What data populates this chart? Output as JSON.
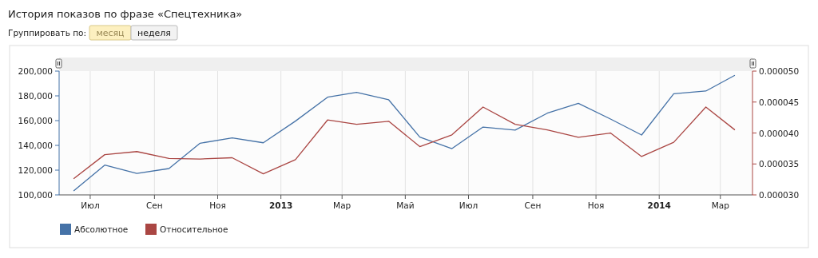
{
  "chart_data": {
    "type": "line",
    "title": "История показов по фразе «Спецтехника»",
    "annotations": [
      "Группировать по:",
      "месяц",
      "неделя"
    ],
    "x": [
      "2012-06-15",
      "2012-07-15",
      "2012-08-15",
      "2012-09-15",
      "2012-10-15",
      "2012-11-15",
      "2012-12-15",
      "2013-01-15",
      "2013-02-15",
      "2013-03-15",
      "2013-04-15",
      "2013-05-15",
      "2013-06-15",
      "2013-07-15",
      "2013-08-15",
      "2013-09-15",
      "2013-10-15",
      "2013-11-15",
      "2013-12-15",
      "2014-01-15",
      "2014-02-15",
      "2014-03-15"
    ],
    "series": [
      {
        "name": "Абсолютное",
        "color": "#4572a7",
        "values": [
          103200,
          124100,
          117400,
          121300,
          141700,
          146000,
          142100,
          159600,
          178900,
          182800,
          176800,
          146700,
          137400,
          154800,
          152300,
          166000,
          174000,
          161300,
          148400,
          181700,
          183900,
          196600
        ]
      },
      {
        "name": "Относительное",
        "color": "#aa4643",
        "axis": "y2",
        "values": [
          3.26e-05,
          3.65e-05,
          3.7e-05,
          3.59e-05,
          3.58e-05,
          3.6e-05,
          3.34e-05,
          3.57e-05,
          4.21e-05,
          4.14e-05,
          4.19e-05,
          3.78e-05,
          3.97e-05,
          4.42e-05,
          4.14e-05,
          4.05e-05,
          3.93e-05,
          4e-05,
          3.62e-05,
          3.85e-05,
          4.42e-05,
          4.05e-05
        ]
      }
    ],
    "xlim": [
      "2012-06-01",
      "2014-04-01"
    ],
    "xticks": [
      {
        "value": "2012-07-01",
        "label": "Июл"
      },
      {
        "value": "2012-09-01",
        "label": "Сен"
      },
      {
        "value": "2012-11-01",
        "label": "Ноя"
      },
      {
        "value": "2013-01-01",
        "label": "2013"
      },
      {
        "value": "2013-03-01",
        "label": "Мар"
      },
      {
        "value": "2013-05-01",
        "label": "Май"
      },
      {
        "value": "2013-07-01",
        "label": "Июл"
      },
      {
        "value": "2013-09-01",
        "label": "Сен"
      },
      {
        "value": "2013-11-01",
        "label": "Ноя"
      },
      {
        "value": "2014-01-01",
        "label": "2014"
      },
      {
        "value": "2014-03-01",
        "label": "Мар"
      }
    ],
    "ylim": [
      100000,
      200000
    ],
    "yticks": [
      {
        "value": 100000,
        "label": "100,000"
      },
      {
        "value": 120000,
        "label": "120,000"
      },
      {
        "value": 140000,
        "label": "140,000"
      },
      {
        "value": 160000,
        "label": "160,000"
      },
      {
        "value": 180000,
        "label": "180,000"
      },
      {
        "value": 200000,
        "label": "200,000"
      }
    ],
    "y2lim": [
      3e-05,
      5e-05
    ],
    "y2ticks": [
      {
        "value": 3e-05,
        "label": "0.000030"
      },
      {
        "value": 3.5e-05,
        "label": "0.000035"
      },
      {
        "value": 4e-05,
        "label": "0.000040"
      },
      {
        "value": 4.5e-05,
        "label": "0.000045"
      },
      {
        "value": 5e-05,
        "label": "0.000050"
      }
    ],
    "grid": "x",
    "legend": "bottom left",
    "marker": "none",
    "line_style": "solid"
  }
}
